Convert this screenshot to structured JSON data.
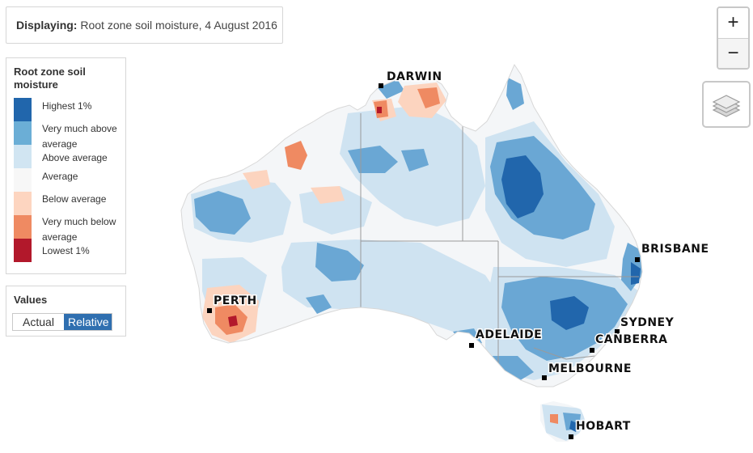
{
  "display": {
    "label": "Displaying:",
    "value": "Root zone soil moisture, 4 August 2016"
  },
  "legend": {
    "title": "Root zone soil moisture",
    "items": [
      {
        "label": "Highest 1%",
        "color": "#2166ac"
      },
      {
        "label": "Very much above average",
        "color": "#6baed6"
      },
      {
        "label": "Above average",
        "color": "#d1e5f2"
      },
      {
        "label": "Average",
        "color": "#f7f7f7"
      },
      {
        "label": "Below average",
        "color": "#fdd5c0"
      },
      {
        "label": "Very much below average",
        "color": "#ef8a62"
      },
      {
        "label": "Lowest 1%",
        "color": "#b2182b"
      }
    ]
  },
  "values": {
    "title": "Values",
    "actual_label": "Actual",
    "relative_label": "Relative",
    "selected": "Relative"
  },
  "zoom": {
    "in_label": "+",
    "out_label": "−"
  },
  "layers": {
    "icon": "layers-icon"
  },
  "cities": {
    "darwin": "DARWIN",
    "brisbane": "BRISBANE",
    "perth": "PERTH",
    "sydney": "SYDNEY",
    "adelaide": "ADELAIDE",
    "canberra": "CANBERRA",
    "melbourne": "MELBOURNE",
    "hobart": "HOBART"
  }
}
